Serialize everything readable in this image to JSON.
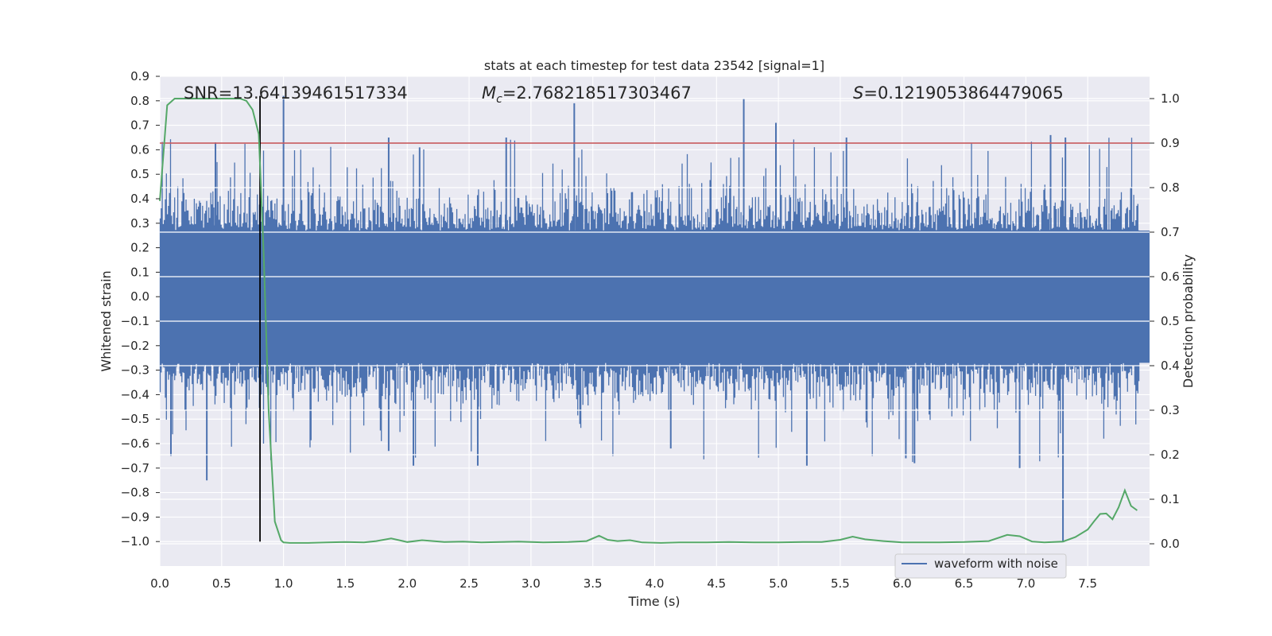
{
  "chart_data": {
    "type": "line",
    "title": "stats at each timestep for test data 23542 [signal=1]",
    "xlabel": "Time (s)",
    "ylabel": "Whitened strain",
    "y2label": "Detection probability",
    "xlim": [
      0.0,
      8.0
    ],
    "ylim": [
      -1.1,
      0.9
    ],
    "y2lim": [
      -0.05,
      1.05
    ],
    "x_ticks": [
      "0.0",
      "0.5",
      "1.0",
      "1.5",
      "2.0",
      "2.5",
      "3.0",
      "3.5",
      "4.0",
      "4.5",
      "5.0",
      "5.5",
      "6.0",
      "6.5",
      "7.0",
      "7.5"
    ],
    "y_ticks": [
      "0.9",
      "0.8",
      "0.7",
      "0.6",
      "0.5",
      "0.4",
      "0.3",
      "0.2",
      "0.1",
      "0.0",
      "−0.1",
      "−0.2",
      "−0.3",
      "−0.4",
      "−0.5",
      "−0.6",
      "−0.7",
      "−0.8",
      "−0.9",
      "−1.0"
    ],
    "y2_ticks": [
      "1.0",
      "0.9",
      "0.8",
      "0.7",
      "0.6",
      "0.5",
      "0.4",
      "0.3",
      "0.2",
      "0.1",
      "0.0"
    ],
    "grid": true,
    "legend": {
      "placement": "lower-right",
      "entries": [
        "waveform with noise"
      ]
    },
    "annotations": {
      "snr": "SNR=13.64139461517334",
      "mc_symbol": "M",
      "mc_sub": "c",
      "mc_value": "=2.768218517303467",
      "s_symbol": "S",
      "s_value": "=0.1219053864479065"
    },
    "threshold": {
      "value": 0.9,
      "axis": "right",
      "color": "#c44e52"
    },
    "marker_line": {
      "x": 0.81,
      "y_from": -1.0,
      "y_to": 0.82,
      "color": "#000000"
    },
    "series": [
      {
        "name": "waveform with noise",
        "axis": "left",
        "color": "#4c72b0",
        "style": "noise",
        "core_amplitude": 0.27,
        "typical_peak": 0.45,
        "max_peak": 0.82,
        "min_trough": -1.0
      },
      {
        "axis": "right",
        "color": "#55a868",
        "x": [
          0.0,
          0.06,
          0.12,
          0.2,
          0.3,
          0.4,
          0.5,
          0.6,
          0.65,
          0.7,
          0.75,
          0.8,
          0.84,
          0.88,
          0.93,
          0.98,
          1.0,
          1.05,
          1.2,
          1.35,
          1.5,
          1.65,
          1.75,
          1.87,
          2.0,
          2.12,
          2.3,
          2.45,
          2.6,
          2.75,
          2.9,
          3.1,
          3.3,
          3.45,
          3.55,
          3.62,
          3.7,
          3.8,
          3.9,
          4.05,
          4.2,
          4.4,
          4.6,
          4.8,
          5.0,
          5.2,
          5.35,
          5.5,
          5.6,
          5.7,
          5.85,
          6.0,
          6.15,
          6.3,
          6.5,
          6.7,
          6.85,
          6.95,
          7.05,
          7.15,
          7.3,
          7.4,
          7.5,
          7.55,
          7.6,
          7.65,
          7.7,
          7.75,
          7.8,
          7.85,
          7.9
        ],
        "values": [
          0.77,
          0.985,
          1.0,
          1.0,
          1.0,
          1.0,
          1.0,
          1.0,
          1.0,
          0.995,
          0.975,
          0.92,
          0.65,
          0.3,
          0.05,
          0.008,
          0.003,
          0.002,
          0.002,
          0.003,
          0.004,
          0.003,
          0.006,
          0.012,
          0.004,
          0.008,
          0.004,
          0.005,
          0.003,
          0.004,
          0.005,
          0.003,
          0.004,
          0.006,
          0.018,
          0.009,
          0.006,
          0.008,
          0.003,
          0.002,
          0.003,
          0.003,
          0.004,
          0.003,
          0.003,
          0.004,
          0.004,
          0.009,
          0.016,
          0.01,
          0.006,
          0.003,
          0.003,
          0.003,
          0.004,
          0.006,
          0.02,
          0.017,
          0.005,
          0.003,
          0.005,
          0.015,
          0.032,
          0.05,
          0.067,
          0.068,
          0.055,
          0.082,
          0.12,
          0.085,
          0.075
        ]
      }
    ]
  }
}
